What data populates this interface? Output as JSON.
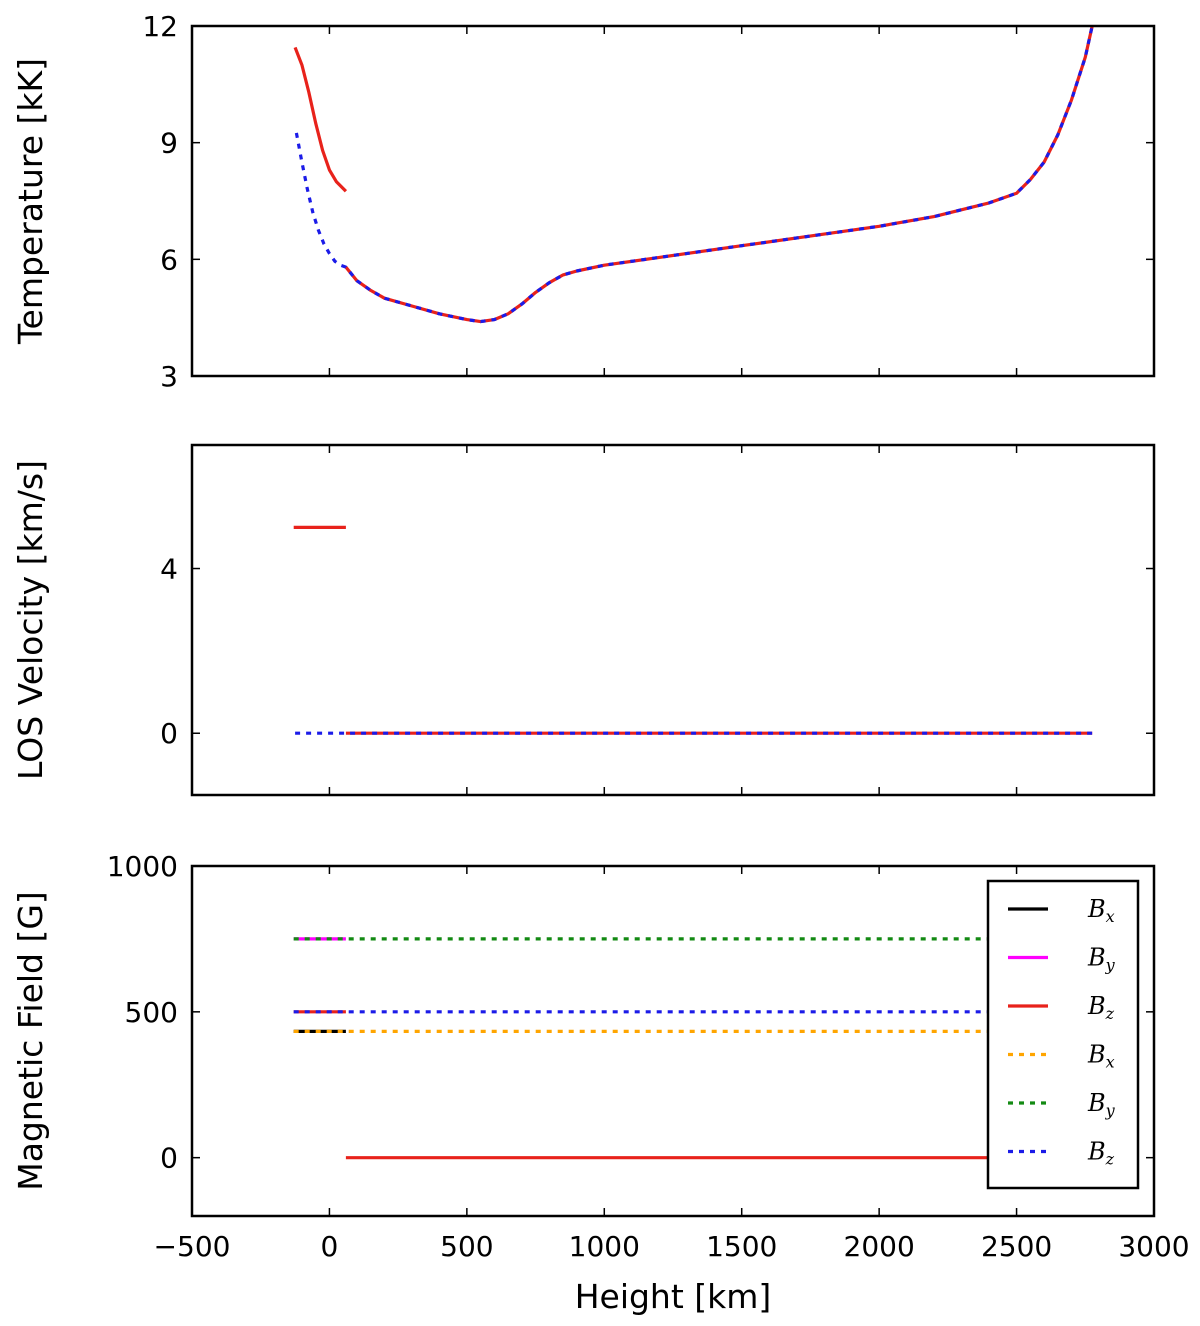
{
  "chart_data": [
    {
      "type": "line",
      "ylabel": "Temperature [kK]",
      "xlim": [
        -500,
        3000
      ],
      "ylim": [
        3,
        12
      ],
      "xticks": [
        -500,
        0,
        500,
        1000,
        1500,
        2000,
        2500,
        3000
      ],
      "yticks": [
        3,
        6,
        9,
        12
      ],
      "series": [
        {
          "color": "#e8221b",
          "style": "solid",
          "x": [
            -125,
            -100,
            -75,
            -50,
            -25,
            0,
            25,
            60
          ],
          "y": [
            11.45,
            11.0,
            10.3,
            9.5,
            8.8,
            8.3,
            8.0,
            7.75
          ]
        },
        {
          "color": "#e8221b",
          "style": "solid",
          "x": [
            60,
            100,
            150,
            200,
            300,
            400,
            500,
            550,
            600,
            650,
            700,
            750,
            800,
            850,
            900,
            1000,
            1200,
            1500,
            1800,
            2000,
            2200,
            2400,
            2500,
            2550,
            2600,
            2650,
            2700,
            2750,
            2775
          ],
          "y": [
            5.8,
            5.45,
            5.2,
            5.0,
            4.8,
            4.6,
            4.45,
            4.4,
            4.45,
            4.6,
            4.85,
            5.15,
            5.4,
            5.6,
            5.7,
            5.85,
            6.05,
            6.35,
            6.65,
            6.85,
            7.1,
            7.45,
            7.7,
            8.05,
            8.5,
            9.2,
            10.1,
            11.2,
            12.0
          ]
        },
        {
          "color": "#1b1be8",
          "style": "dotted",
          "x": [
            -120,
            -100,
            -80,
            -60,
            -40,
            -20,
            0,
            20,
            40,
            60,
            100,
            150,
            200,
            300,
            400,
            500,
            550,
            600,
            650,
            700,
            750,
            800,
            850,
            900,
            1000,
            1200,
            1500,
            1800,
            2000,
            2200,
            2400,
            2500,
            2550,
            2600,
            2650,
            2700,
            2750,
            2775
          ],
          "y": [
            9.25,
            8.5,
            7.8,
            7.2,
            6.75,
            6.4,
            6.15,
            5.95,
            5.85,
            5.8,
            5.45,
            5.2,
            5.0,
            4.8,
            4.6,
            4.45,
            4.4,
            4.45,
            4.6,
            4.85,
            5.15,
            5.4,
            5.6,
            5.7,
            5.85,
            6.05,
            6.35,
            6.65,
            6.85,
            7.1,
            7.45,
            7.7,
            8.05,
            8.5,
            9.2,
            10.1,
            11.2,
            12.0
          ]
        }
      ]
    },
    {
      "type": "line",
      "ylabel": "LOS Velocity [km/s]",
      "xlim": [
        -500,
        3000
      ],
      "ylim": [
        -1.5,
        7
      ],
      "xticks": [
        -500,
        0,
        500,
        1000,
        1500,
        2000,
        2500,
        3000
      ],
      "yticks": [
        0,
        4
      ],
      "series": [
        {
          "color": "#e8221b",
          "style": "solid",
          "x": [
            -130,
            60
          ],
          "y": [
            5,
            5
          ]
        },
        {
          "color": "#e8221b",
          "style": "solid",
          "x": [
            60,
            2775
          ],
          "y": [
            0,
            0
          ]
        },
        {
          "color": "#1b1be8",
          "style": "dotted",
          "x": [
            -125,
            2775
          ],
          "y": [
            0,
            0
          ]
        }
      ]
    },
    {
      "type": "line",
      "ylabel": "Magnetic Field [G]",
      "xlabel": "Height [km]",
      "xlim": [
        -500,
        3000
      ],
      "ylim": [
        -200,
        1000
      ],
      "xticks": [
        -500,
        0,
        500,
        1000,
        1500,
        2000,
        2500,
        3000
      ],
      "xtick_labels": [
        "−500",
        "0",
        "500",
        "1000",
        "1500",
        "2000",
        "2500",
        "3000"
      ],
      "yticks": [
        0,
        500,
        1000
      ],
      "legend": "top-right",
      "series": [
        {
          "name": "B_x",
          "color": "#000000",
          "style": "solid",
          "legend": true,
          "x": [
            -130,
            60
          ],
          "y": [
            433,
            433
          ]
        },
        {
          "name": "B_y",
          "color": "#ff00ff",
          "style": "solid",
          "legend": true,
          "x": [
            -130,
            60
          ],
          "y": [
            750,
            750
          ]
        },
        {
          "name": "B_z",
          "color": "#e8221b",
          "style": "solid",
          "legend": true,
          "x": [
            -130,
            60
          ],
          "y": [
            500,
            500
          ]
        },
        {
          "name": "B_x",
          "color": "#ffa500",
          "style": "dotted",
          "legend": true,
          "x": [
            -130,
            2775
          ],
          "y": [
            433,
            433
          ]
        },
        {
          "name": "B_y",
          "color": "#138a13",
          "style": "dotted",
          "legend": true,
          "x": [
            -130,
            2775
          ],
          "y": [
            750,
            750
          ]
        },
        {
          "name": "B_z",
          "color": "#1b1be8",
          "style": "dotted",
          "legend": true,
          "x": [
            -130,
            2775
          ],
          "y": [
            500,
            500
          ]
        },
        {
          "color": "#e8221b",
          "style": "solid",
          "legend": false,
          "x": [
            60,
            2775
          ],
          "y": [
            0,
            0
          ]
        }
      ]
    }
  ]
}
